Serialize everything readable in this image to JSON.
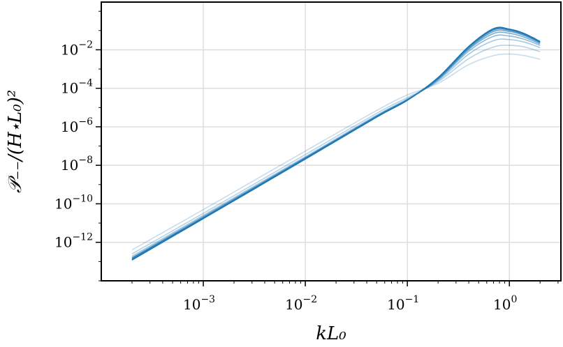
{
  "chart_data": {
    "type": "line",
    "title": "",
    "xlabel": "kL₀",
    "ylabel": "𝒫₋₋/(H⋆L₀)²",
    "xscale": "log",
    "yscale": "log",
    "xlim": [
      0.0001,
      3.2
    ],
    "ylim": [
      1e-14,
      3
    ],
    "grid": true,
    "x_ticks": [
      {
        "base": "10",
        "exp": "−3",
        "value": 0.001
      },
      {
        "base": "10",
        "exp": "−2",
        "value": 0.01
      },
      {
        "base": "10",
        "exp": "−1",
        "value": 0.1
      },
      {
        "base": "10",
        "exp": "0",
        "value": 1
      }
    ],
    "y_ticks": [
      {
        "base": "10",
        "exp": "−2",
        "value": 0.01
      },
      {
        "base": "10",
        "exp": "−4",
        "value": 0.0001
      },
      {
        "base": "10",
        "exp": "−6",
        "value": 1e-06
      },
      {
        "base": "10",
        "exp": "−8",
        "value": 1e-08
      },
      {
        "base": "10",
        "exp": "−10",
        "value": 1e-10
      },
      {
        "base": "10",
        "exp": "−12",
        "value": 1e-12
      }
    ],
    "series_color": "#1f77b4",
    "series": [
      {
        "opacity": 0.25,
        "values": [
          [
            0.0002,
            4e-13
          ],
          [
            0.001,
            5e-11
          ],
          [
            0.01,
            5.5e-08
          ],
          [
            0.05,
            7e-06
          ],
          [
            0.1,
            4.5e-05
          ],
          [
            0.2,
            0.00018
          ],
          [
            0.4,
            0.0017
          ],
          [
            0.7,
            0.005
          ],
          [
            1.0,
            0.006
          ],
          [
            1.4,
            0.005
          ],
          [
            2.0,
            0.0032
          ]
        ]
      },
      {
        "opacity": 0.32,
        "values": [
          [
            0.0002,
            2.5e-13
          ],
          [
            0.001,
            3.2e-11
          ],
          [
            0.01,
            3.6e-08
          ],
          [
            0.05,
            5e-06
          ],
          [
            0.1,
            3.3e-05
          ],
          [
            0.2,
            0.00022
          ],
          [
            0.4,
            0.0035
          ],
          [
            0.7,
            0.014
          ],
          [
            1.0,
            0.017
          ],
          [
            1.4,
            0.014
          ],
          [
            2.0,
            0.008
          ]
        ]
      },
      {
        "opacity": 0.4,
        "values": [
          [
            0.0002,
            1.9e-13
          ],
          [
            0.001,
            2.5e-11
          ],
          [
            0.01,
            2.8e-08
          ],
          [
            0.05,
            4e-06
          ],
          [
            0.1,
            2.8e-05
          ],
          [
            0.2,
            0.00025
          ],
          [
            0.4,
            0.006
          ],
          [
            0.7,
            0.03
          ],
          [
            1.0,
            0.034
          ],
          [
            1.4,
            0.025
          ],
          [
            2.0,
            0.013
          ]
        ]
      },
      {
        "opacity": 0.5,
        "values": [
          [
            0.0002,
            1.6e-13
          ],
          [
            0.001,
            2.2e-11
          ],
          [
            0.01,
            2.5e-08
          ],
          [
            0.05,
            3.7e-06
          ],
          [
            0.1,
            2.6e-05
          ],
          [
            0.2,
            0.00028
          ],
          [
            0.4,
            0.0085
          ],
          [
            0.7,
            0.05
          ],
          [
            1.0,
            0.052
          ],
          [
            1.4,
            0.035
          ],
          [
            2.0,
            0.017
          ]
        ]
      },
      {
        "opacity": 0.6,
        "values": [
          [
            0.0002,
            1.5e-13
          ],
          [
            0.001,
            2e-11
          ],
          [
            0.01,
            2.4e-08
          ],
          [
            0.05,
            3.5e-06
          ],
          [
            0.1,
            2.5e-05
          ],
          [
            0.2,
            0.0003
          ],
          [
            0.4,
            0.0105
          ],
          [
            0.7,
            0.07
          ],
          [
            1.0,
            0.072
          ],
          [
            1.4,
            0.045
          ],
          [
            2.0,
            0.02
          ]
        ]
      },
      {
        "opacity": 0.7,
        "values": [
          [
            0.0002,
            1.4e-13
          ],
          [
            0.001,
            1.9e-11
          ],
          [
            0.01,
            2.3e-08
          ],
          [
            0.05,
            3.4e-06
          ],
          [
            0.1,
            2.5e-05
          ],
          [
            0.2,
            0.00032
          ],
          [
            0.4,
            0.012
          ],
          [
            0.7,
            0.09
          ],
          [
            1.0,
            0.09
          ],
          [
            1.4,
            0.055
          ],
          [
            2.0,
            0.023
          ]
        ]
      },
      {
        "opacity": 0.8,
        "values": [
          [
            0.0002,
            1.3e-13
          ],
          [
            0.001,
            1.8e-11
          ],
          [
            0.01,
            2.2e-08
          ],
          [
            0.05,
            3.3e-06
          ],
          [
            0.1,
            2.4e-05
          ],
          [
            0.2,
            0.00034
          ],
          [
            0.4,
            0.0135
          ],
          [
            0.7,
            0.108
          ],
          [
            1.0,
            0.105
          ],
          [
            1.4,
            0.062
          ],
          [
            2.0,
            0.025
          ]
        ]
      },
      {
        "opacity": 0.9,
        "values": [
          [
            0.0002,
            1.25e-13
          ],
          [
            0.001,
            1.75e-11
          ],
          [
            0.01,
            2.15e-08
          ],
          [
            0.05,
            3.25e-06
          ],
          [
            0.1,
            2.4e-05
          ],
          [
            0.2,
            0.00035
          ],
          [
            0.4,
            0.0145
          ],
          [
            0.7,
            0.118
          ],
          [
            1.0,
            0.112
          ],
          [
            1.4,
            0.066
          ],
          [
            2.0,
            0.026
          ]
        ]
      },
      {
        "opacity": 1.0,
        "values": [
          [
            0.0002,
            1.2e-13
          ],
          [
            0.001,
            1.7e-11
          ],
          [
            0.01,
            2.1e-08
          ],
          [
            0.05,
            3.2e-06
          ],
          [
            0.1,
            2.4e-05
          ],
          [
            0.2,
            0.00036
          ],
          [
            0.4,
            0.015
          ],
          [
            0.7,
            0.125
          ],
          [
            1.0,
            0.118
          ],
          [
            1.4,
            0.07
          ],
          [
            2.0,
            0.027
          ]
        ]
      }
    ]
  }
}
